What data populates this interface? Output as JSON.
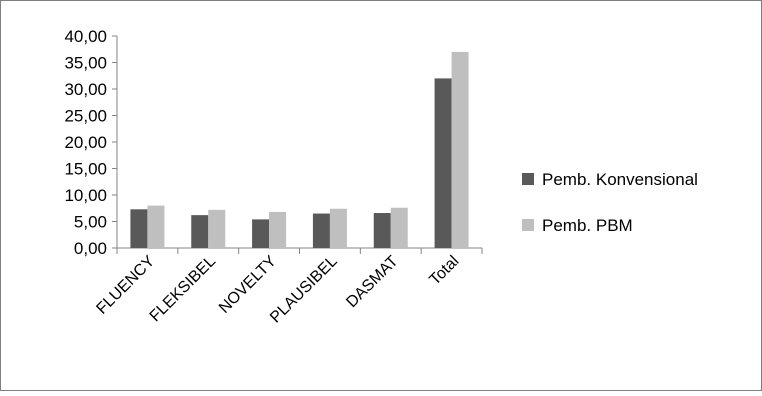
{
  "chart_data": {
    "type": "bar",
    "title": "",
    "xlabel": "",
    "ylabel": "",
    "categories": [
      "FLUENCY",
      "FLEKSIBEL",
      "NOVELTY",
      "PLAUSIBEL",
      "DASMAT",
      "Total"
    ],
    "series": [
      {
        "name": "Pemb. Konvensional",
        "color": "#595959",
        "values": [
          7.3,
          6.2,
          5.4,
          6.5,
          6.6,
          32.0
        ]
      },
      {
        "name": "Pemb. PBM",
        "color": "#bfbfbf",
        "values": [
          8.0,
          7.2,
          6.8,
          7.4,
          7.6,
          37.0
        ]
      }
    ],
    "ylim": [
      0,
      40
    ],
    "yticks": [
      "0,00",
      "5,00",
      "10,00",
      "15,00",
      "20,00",
      "25,00",
      "30,00",
      "35,00",
      "40,00"
    ],
    "grid": false,
    "legend_position": "right"
  }
}
